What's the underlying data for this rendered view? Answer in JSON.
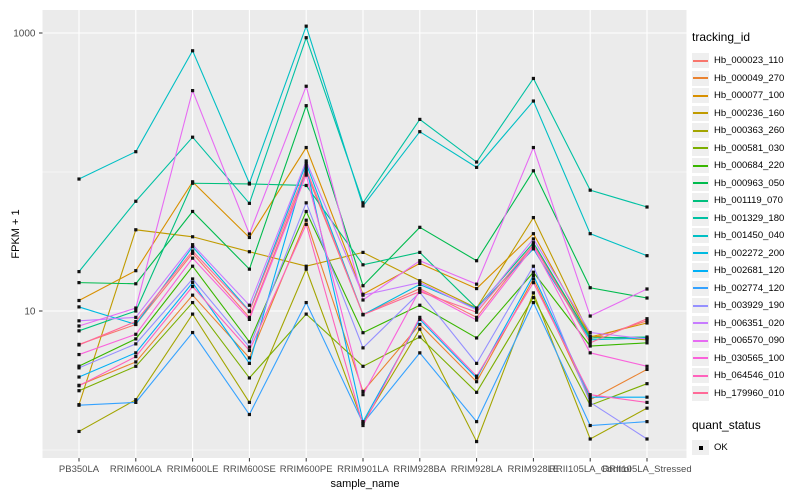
{
  "figure": {
    "background": "#ffffff",
    "panel_background": "#ebebeb",
    "gridline_color": "#ffffff",
    "tick_color": "#333333",
    "tick_label_color": "#4d4d4d",
    "point_color": "#111111"
  },
  "legend": {
    "tracking_title": "tracking_id",
    "quant_title": "quant_status",
    "quant_items": [
      {
        "label": "OK",
        "marker": "black-square"
      }
    ]
  },
  "chart_data": {
    "type": "line",
    "title": "",
    "xlabel": "sample_name",
    "ylabel": "FPKM + 1",
    "y_scale": "log10",
    "y_ticks": [
      {
        "value": 1000,
        "label": "1000"
      },
      {
        "value": 10,
        "label": "10"
      }
    ],
    "y_minor_gridlines": [
      1,
      100
    ],
    "ylim_log": [
      0.97,
      1500
    ],
    "grid": true,
    "legend_position": "right",
    "categories": [
      "PB350LA",
      "RRIM600LA",
      "RRIM600LE",
      "RRIM600SE",
      "RRIM600PE",
      "RRIM901LA",
      "RRIM928BA",
      "RRIM928LA",
      "RRIM928LE",
      "RRII105LA_Control",
      "RRII105LA_Stressed"
    ],
    "series": [
      {
        "name": "Hb_000023_110",
        "color": "#F8766D",
        "values": [
          5.75,
          8.0,
          26,
          9.0,
          100,
          9.46,
          14.5,
          9.0,
          30,
          6.3,
          8.5
        ]
      },
      {
        "name": "Hb_000049_270",
        "color": "#EA8331",
        "values": [
          2.92,
          4.3,
          13,
          4.6,
          45,
          2.64,
          8.0,
          3.1,
          17,
          2.3,
          3.8
        ]
      },
      {
        "name": "Hb_000077_100",
        "color": "#D89000",
        "values": [
          11.9,
          19.5,
          85,
          33.8,
          150,
          13.2,
          22,
          14.5,
          36,
          6.5,
          8.2
        ]
      },
      {
        "name": "Hb_000236_160",
        "color": "#C09B00",
        "values": [
          2.12,
          38.4,
          34.2,
          26.7,
          21,
          26.4,
          16.5,
          10.5,
          47,
          6.6,
          6.2
        ]
      },
      {
        "name": "Hb_000363_260",
        "color": "#A3A500",
        "values": [
          1.36,
          2.3,
          9.5,
          2.2,
          20,
          1.56,
          7.4,
          1.15,
          13.5,
          1.2,
          2.0
        ]
      },
      {
        "name": "Hb_000581_030",
        "color": "#7CAE00",
        "values": [
          2.67,
          4.0,
          11.5,
          3.3,
          9.5,
          4.0,
          6.5,
          2.6,
          12.5,
          2.1,
          3.0
        ]
      },
      {
        "name": "Hb_000684_220",
        "color": "#39B600",
        "values": [
          4.01,
          6.3,
          21,
          6.0,
          52,
          6.98,
          11.0,
          6.4,
          19,
          5.6,
          5.9
        ]
      },
      {
        "name": "Hb_000963_050",
        "color": "#00BB4E",
        "values": [
          16.0,
          15.7,
          52,
          20,
          300,
          15.2,
          40,
          23,
          102,
          14.7,
          12.4
        ]
      },
      {
        "name": "Hb_001119_070",
        "color": "#00BF7D",
        "values": [
          7.2,
          10.0,
          83,
          82,
          80,
          21.5,
          26.4,
          10.5,
          31,
          6.4,
          6.5
        ]
      },
      {
        "name": "Hb_001329_180",
        "color": "#00C1A3",
        "values": [
          19.2,
          61.6,
          178,
          59.5,
          925,
          60,
          239,
          118,
          471,
          74,
          56
        ]
      },
      {
        "name": "Hb_001450_040",
        "color": "#00BFC4",
        "values": [
          89,
          140,
          745,
          83,
          1120,
          57,
          195,
          108,
          324,
          36,
          25
        ]
      },
      {
        "name": "Hb_002272_200",
        "color": "#00BAE0",
        "values": [
          10.7,
          8.0,
          29,
          10.0,
          115,
          9.4,
          15.5,
          10.4,
          28,
          6.2,
          6.4
        ]
      },
      {
        "name": "Hb_002681_120",
        "color": "#00B0F6",
        "values": [
          3.35,
          5.0,
          16,
          4.2,
          110,
          1.6,
          8.7,
          3.3,
          18,
          2.4,
          2.4
        ]
      },
      {
        "name": "Hb_002774_120",
        "color": "#35A2FF",
        "values": [
          2.1,
          2.2,
          7.0,
          1.8,
          11.5,
          1.56,
          5.0,
          1.6,
          11.5,
          1.5,
          1.6
        ]
      },
      {
        "name": "Hb_003929_190",
        "color": "#9590FF",
        "values": [
          3.9,
          5.8,
          17,
          5.5,
          60,
          5.43,
          13.6,
          4.2,
          21,
          2.2,
          1.2
        ]
      },
      {
        "name": "Hb_006351_020",
        "color": "#C77CFF",
        "values": [
          8.5,
          9.0,
          30,
          11.0,
          120,
          13.0,
          16,
          10.2,
          33,
          7.0,
          6.3
        ]
      },
      {
        "name": "Hb_006570_090",
        "color": "#E76BF3",
        "values": [
          7.8,
          10.5,
          385,
          35.8,
          414,
          12.0,
          23,
          15.6,
          150,
          9.2,
          14.4
        ]
      },
      {
        "name": "Hb_030565_100",
        "color": "#FA62DB",
        "values": [
          4.86,
          6.8,
          24,
          8.7,
          95,
          2.5,
          14.2,
          8.6,
          29,
          5.0,
          4.0
        ]
      },
      {
        "name": "Hb_064546_010",
        "color": "#FF62BC",
        "values": [
          2.9,
          4.7,
          15,
          5.2,
          42,
          1.5,
          9.0,
          3.4,
          16,
          2.5,
          2.2
        ]
      },
      {
        "name": "Hb_179960_010",
        "color": "#FF6A98",
        "values": [
          5.7,
          8.4,
          27,
          9.9,
          105,
          9.4,
          13.8,
          9.8,
          30,
          5.9,
          8.8
        ]
      }
    ]
  }
}
